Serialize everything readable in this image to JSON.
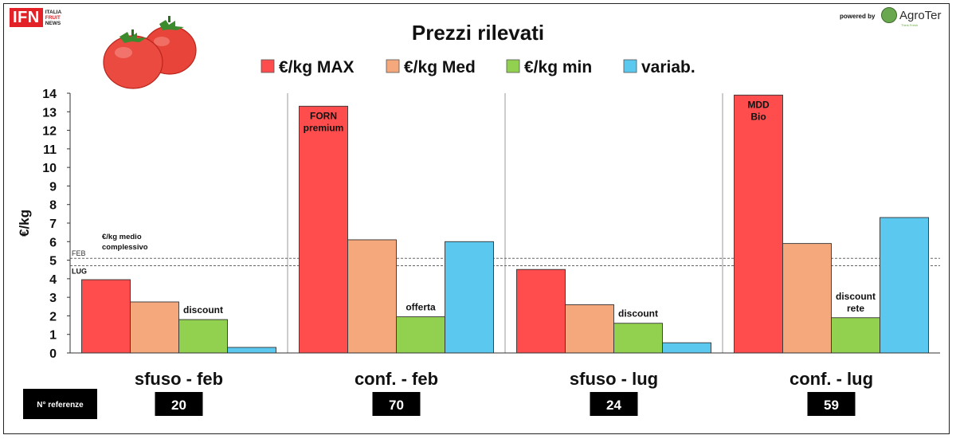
{
  "logo": {
    "brand": "IFN",
    "line1": "ITALIA",
    "line2": "FRUIT",
    "line3": "NEWS"
  },
  "sponsor": {
    "powered_label": "powered by",
    "name": "AgroTer",
    "tagline": "Think Fresh"
  },
  "chart_data": {
    "type": "bar",
    "title": "Prezzi rilevati",
    "ylabel": "€/kg",
    "ylim": [
      0,
      14
    ],
    "yticks": [
      0,
      1,
      2,
      3,
      4,
      5,
      6,
      7,
      8,
      9,
      10,
      11,
      12,
      13,
      14
    ],
    "grid": false,
    "legend_position": "top",
    "categories": [
      "sfuso - feb",
      "conf. - feb",
      "sfuso - lug",
      "conf. - lug"
    ],
    "series": [
      {
        "name": "€/kg MAX",
        "color": "#ff4d4d",
        "values": [
          3.95,
          13.3,
          4.5,
          13.9
        ]
      },
      {
        "name": "€/kg Med",
        "color": "#f4a87c",
        "values": [
          2.75,
          6.1,
          2.6,
          5.9
        ]
      },
      {
        "name": "€/kg  min",
        "color": "#92d050",
        "values": [
          1.8,
          1.95,
          1.6,
          1.9
        ]
      },
      {
        "name": "variab.",
        "color": "#5bc8f0",
        "values": [
          0.3,
          6.0,
          0.55,
          7.3
        ]
      }
    ],
    "reference_lines": [
      {
        "label": "FEB",
        "value": 5.1
      },
      {
        "label": "LUG",
        "value": 4.7
      }
    ],
    "reference_caption": [
      "€/kg medio",
      "complessivo"
    ],
    "annotations": [
      {
        "category": 0,
        "series": 2,
        "lines": [
          "discount"
        ],
        "placement": "above"
      },
      {
        "category": 1,
        "series": 0,
        "lines": [
          "FORN",
          "premium"
        ],
        "placement": "inside"
      },
      {
        "category": 1,
        "series": 2,
        "lines": [
          "offerta"
        ],
        "placement": "above"
      },
      {
        "category": 2,
        "series": 2,
        "lines": [
          "discount"
        ],
        "placement": "above"
      },
      {
        "category": 3,
        "series": 0,
        "lines": [
          "MDD",
          "Bio"
        ],
        "placement": "inside"
      },
      {
        "category": 3,
        "series": 2,
        "lines": [
          "discount",
          "rete"
        ],
        "placement": "above"
      }
    ],
    "referenze_label": "N° referenze",
    "referenze": [
      20,
      70,
      24,
      59
    ]
  }
}
